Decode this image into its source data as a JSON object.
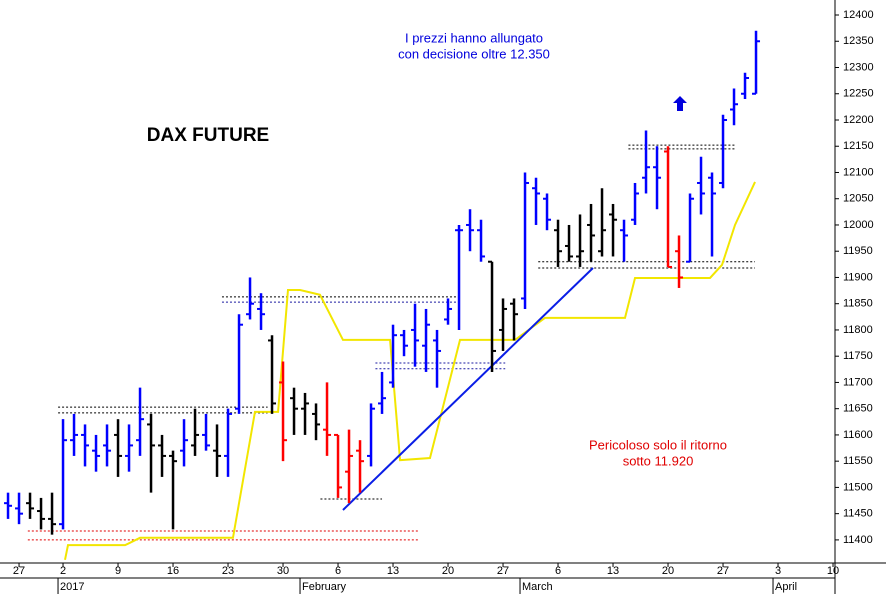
{
  "chart_data": {
    "type": "ohlc",
    "title": "DAX FUTURE",
    "x": [
      -5,
      -4,
      -3,
      -2,
      -1,
      0,
      1,
      2,
      3,
      4,
      5,
      6,
      7,
      8,
      9,
      10,
      11,
      12,
      13,
      14,
      15,
      16,
      17,
      18,
      19,
      20,
      21,
      22,
      23,
      24,
      25,
      26,
      27,
      28,
      29,
      30,
      31,
      32,
      33,
      34,
      35,
      36,
      37,
      38,
      39,
      40,
      41,
      42,
      43,
      44,
      45,
      46,
      47,
      48,
      49,
      50,
      51,
      52,
      53,
      54,
      55,
      56,
      57,
      58,
      59,
      60,
      61,
      62,
      63
    ],
    "open": [
      11470,
      11460,
      11470,
      11455,
      11440,
      11430,
      11590,
      11600,
      11570,
      11580,
      11600,
      11560,
      11590,
      11620,
      11580,
      11560,
      11570,
      11580,
      11600,
      11570,
      11560,
      11650,
      11830,
      11840,
      11780,
      11700,
      11670,
      11650,
      11640,
      11610,
      11600,
      11530,
      11570,
      11560,
      11660,
      11700,
      11790,
      11800,
      11770,
      11780,
      11820,
      11990,
      12000,
      11990,
      11930,
      11800,
      11850,
      11860,
      12070,
      12050,
      11990,
      11960,
      11940,
      12000,
      11950,
      12020,
      11990,
      12010,
      12090,
      12110,
      12140,
      11950,
      11930,
      12080,
      12090,
      12080,
      12220,
      12250,
      12250
    ],
    "high": [
      11490,
      11490,
      11490,
      11480,
      11490,
      11630,
      11640,
      11620,
      11600,
      11620,
      11630,
      11620,
      11690,
      11640,
      11600,
      11570,
      11630,
      11650,
      11640,
      11620,
      11650,
      11830,
      11900,
      11870,
      11790,
      11740,
      11690,
      11680,
      11660,
      11700,
      11600,
      11610,
      11590,
      11660,
      11720,
      11810,
      11800,
      11850,
      11840,
      11800,
      11860,
      12000,
      12030,
      12010,
      11930,
      11860,
      11860,
      12100,
      12090,
      12060,
      12010,
      12000,
      12020,
      12040,
      12070,
      12040,
      12010,
      12080,
      12180,
      12150,
      12150,
      11980,
      12060,
      12130,
      12100,
      12210,
      12260,
      12290,
      12370
    ],
    "low": [
      11440,
      11430,
      11440,
      11420,
      11410,
      11420,
      11560,
      11540,
      11530,
      11540,
      11520,
      11530,
      11560,
      11490,
      11520,
      11420,
      11540,
      11560,
      11570,
      11520,
      11520,
      11640,
      11820,
      11800,
      11640,
      11550,
      11600,
      11600,
      11590,
      11560,
      11480,
      11470,
      11490,
      11540,
      11640,
      11690,
      11750,
      11730,
      11720,
      11690,
      11810,
      11800,
      11950,
      11930,
      11720,
      11760,
      11780,
      11840,
      12000,
      11990,
      11920,
      11930,
      11920,
      11930,
      11940,
      11940,
      11930,
      12000,
      12060,
      12030,
      11920,
      11880,
      11930,
      12020,
      11940,
      12070,
      12190,
      12240,
      12250
    ],
    "close": [
      11465,
      11450,
      11460,
      11440,
      11430,
      11590,
      11600,
      11580,
      11560,
      11570,
      11560,
      11580,
      11630,
      11580,
      11560,
      11550,
      11590,
      11600,
      11580,
      11560,
      11640,
      11810,
      11850,
      11830,
      11660,
      11590,
      11650,
      11660,
      11620,
      11600,
      11500,
      11560,
      11550,
      11650,
      11670,
      11790,
      11770,
      11780,
      11810,
      11760,
      11840,
      11990,
      11990,
      11940,
      11760,
      11840,
      11830,
      12080,
      12060,
      12010,
      11950,
      11940,
      11950,
      11980,
      11990,
      12010,
      11980,
      12060,
      12110,
      12090,
      11920,
      11900,
      12050,
      12060,
      12060,
      12200,
      12230,
      12280,
      12350
    ],
    "colors": [
      "blue",
      "blue",
      "black",
      "black",
      "black",
      "blue",
      "blue",
      "blue",
      "blue",
      "blue",
      "black",
      "blue",
      "blue",
      "black",
      "black",
      "black",
      "blue",
      "black",
      "blue",
      "black",
      "blue",
      "blue",
      "blue",
      "blue",
      "black",
      "red",
      "black",
      "black",
      "black",
      "red",
      "red",
      "red",
      "red",
      "blue",
      "blue",
      "blue",
      "blue",
      "blue",
      "blue",
      "blue",
      "blue",
      "blue",
      "blue",
      "blue",
      "black",
      "black",
      "black",
      "blue",
      "blue",
      "blue",
      "black",
      "black",
      "black",
      "black",
      "black",
      "black",
      "blue",
      "blue",
      "blue",
      "blue",
      "red",
      "red",
      "blue",
      "blue",
      "blue",
      "blue",
      "blue",
      "blue",
      "blue"
    ],
    "lines": [
      {
        "color": "#f2e600",
        "x": [
          0.18,
          0.45,
          5.64,
          7.0,
          15.45,
          17.45,
          19.55,
          20.45,
          21.55,
          23.36,
          25.45,
          29.73,
          30.64,
          33.36,
          36.09,
          41.09,
          43.82,
          51.09,
          52.0,
          58.82,
          59.91,
          61.09,
          62.91
        ],
        "values": [
          11362,
          11390,
          11390,
          11404,
          11404,
          11644,
          11644,
          11876,
          11876,
          11867,
          11781,
          11781,
          11552,
          11556,
          11781,
          11781,
          11823,
          11823,
          11899,
          11899,
          11924,
          12000,
          12082
        ]
      },
      {
        "color": "#0a1ee6",
        "x": [
          25.45,
          48.18
        ],
        "values": [
          11457,
          11918
        ]
      }
    ],
    "levels": [
      {
        "x": [
          -3.2,
          32.3
        ],
        "value": 11417,
        "color": "#e00000"
      },
      {
        "x": [
          -3.2,
          32.3
        ],
        "value": 11400,
        "color": "#e00000"
      },
      {
        "x": [
          -0.45,
          18.6
        ],
        "value": 11653,
        "color": "#000000"
      },
      {
        "x": [
          -0.45,
          18.6
        ],
        "value": 11642,
        "color": "#000000"
      },
      {
        "x": [
          14.45,
          36.1
        ],
        "value": 11863,
        "color": "#000000"
      },
      {
        "x": [
          14.45,
          36.1
        ],
        "value": 11853,
        "color": "#1a1aa0"
      },
      {
        "x": [
          28.4,
          40.2
        ],
        "value": 11737,
        "color": "#1a1aa0"
      },
      {
        "x": [
          28.4,
          40.2
        ],
        "value": 11726,
        "color": "#1a1aa0"
      },
      {
        "x": [
          23.4,
          29.0
        ],
        "value": 11478,
        "color": "#000000"
      },
      {
        "x": [
          43.2,
          62.9
        ],
        "value": 11930,
        "color": "#000000"
      },
      {
        "x": [
          43.2,
          62.9
        ],
        "value": 11918,
        "color": "#000000"
      },
      {
        "x": [
          51.4,
          61.1
        ],
        "value": 12152,
        "color": "#000000"
      },
      {
        "x": [
          51.4,
          61.1
        ],
        "value": 12145,
        "color": "#000000"
      }
    ],
    "annotations": [
      {
        "lines": [
          "I prezzi hanno allungato",
          "con decisione oltre 12.350"
        ],
        "color": "#0000dd"
      },
      {
        "lines": [
          "Pericoloso solo il ritorno",
          "sotto 11.920"
        ],
        "color": "#e00000"
      }
    ],
    "xlim": [
      -5.73,
      70.18
    ],
    "ylim": [
      11356,
      12428.6
    ],
    "yticks": [
      11400,
      11450,
      11500,
      11550,
      11600,
      11650,
      11700,
      11750,
      11800,
      11850,
      11900,
      11950,
      12000,
      12050,
      12100,
      12150,
      12200,
      12250,
      12300,
      12350,
      12400
    ],
    "xticks": [
      {
        "value": -4,
        "label": "27"
      },
      {
        "value": 0,
        "label": "2"
      },
      {
        "value": 5,
        "label": "9"
      },
      {
        "value": 10,
        "label": "16"
      },
      {
        "value": 15,
        "label": "23"
      },
      {
        "value": 20,
        "label": "30"
      },
      {
        "value": 25,
        "label": "6"
      },
      {
        "value": 30,
        "label": "13"
      },
      {
        "value": 35,
        "label": "20"
      },
      {
        "value": 40,
        "label": "27"
      },
      {
        "value": 45,
        "label": "6"
      },
      {
        "value": 50,
        "label": "13"
      },
      {
        "value": 55,
        "label": "20"
      },
      {
        "value": 60,
        "label": "27"
      },
      {
        "value": 65,
        "label": "3"
      },
      {
        "value": 70,
        "label": "10"
      }
    ],
    "periods": [
      {
        "value": 0,
        "label": "2017"
      },
      {
        "value": 22,
        "label": "February"
      },
      {
        "value": 42,
        "label": "March"
      },
      {
        "value": 65,
        "label": "April"
      }
    ]
  }
}
